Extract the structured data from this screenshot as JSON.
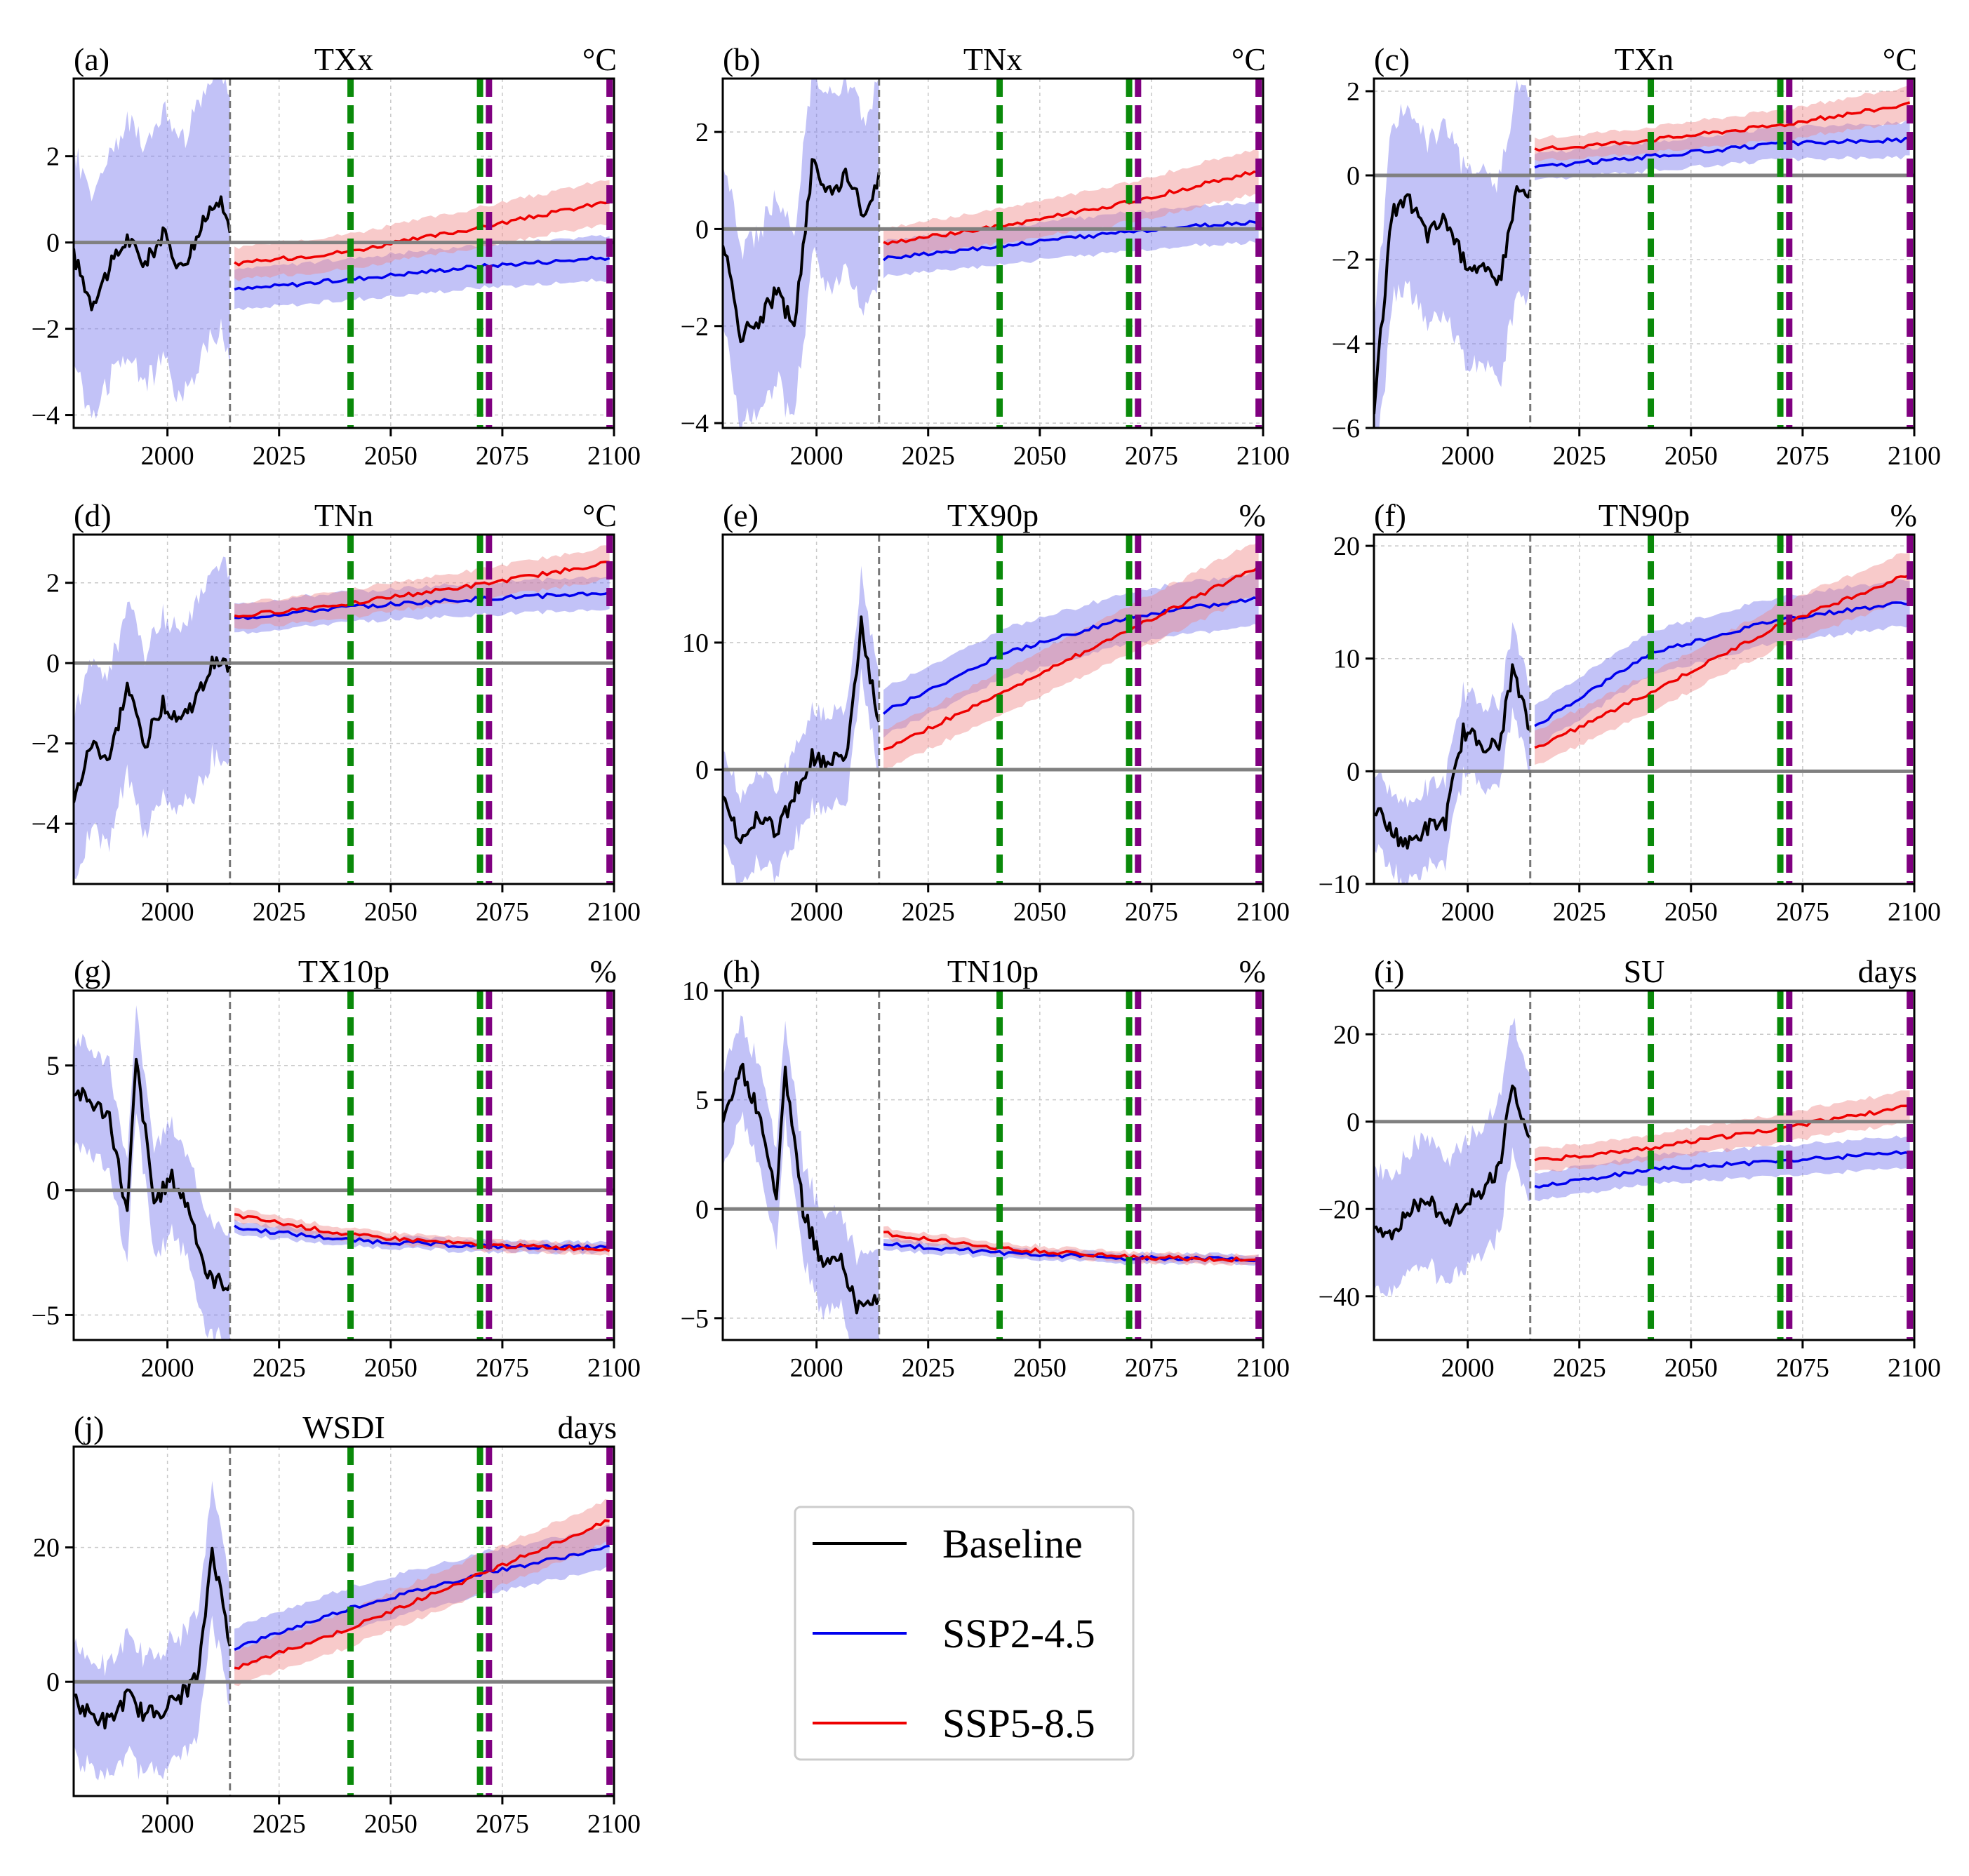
{
  "figure": {
    "x_ticks": [
      2000,
      2025,
      2050,
      2075,
      2100
    ],
    "xlim": [
      1979,
      2100
    ],
    "baseline_end_year": 2014,
    "green_markers": [
      2041,
      2070
    ],
    "purple_markers": [
      2072,
      2099
    ],
    "colors": {
      "baseline": "#000000",
      "ssp245": "#0000ee",
      "ssp585": "#ee0000",
      "band_ssp245": "#7777ee",
      "band_ssp585": "#f08a8a",
      "zero_line": "#808080",
      "green_marker": "#0a8a0a",
      "purple_marker": "#800080",
      "grid": "#c8c8c8"
    }
  },
  "legend": {
    "entries": [
      {
        "label": "Baseline",
        "color": "#000000"
      },
      {
        "label": "SSP2-4.5",
        "color": "#0000ee"
      },
      {
        "label": "SSP5-8.5",
        "color": "#ee0000"
      }
    ]
  },
  "chart_data": [
    {
      "id": "a",
      "type": "line",
      "panel": "(a)",
      "title": "TXx",
      "unit": "°C",
      "ylim": [
        -4.3,
        3.8
      ],
      "yticks": [
        -4,
        -2,
        0,
        2
      ],
      "series": [
        {
          "name": "Baseline",
          "x": [
            1979,
            1983,
            1987,
            1991,
            1995,
            1999,
            2003,
            2007,
            2011,
            2014
          ],
          "values": [
            -0.3,
            -1.4,
            -0.6,
            0.1,
            -0.5,
            0.2,
            -0.6,
            0.2,
            1.1,
            0.4
          ],
          "band": [
            2.2,
            2.8
          ]
        },
        {
          "name": "SSP2-4.5",
          "x": [
            2015,
            2041,
            2070,
            2099
          ],
          "values": [
            -1.1,
            -0.85,
            -0.55,
            -0.35
          ],
          "band": [
            0.45,
            0.5
          ]
        },
        {
          "name": "SSP5-8.5",
          "x": [
            2015,
            2041,
            2070,
            2099
          ],
          "values": [
            -0.5,
            -0.2,
            0.35,
            0.95
          ],
          "band": [
            0.35,
            0.5
          ]
        }
      ]
    },
    {
      "id": "b",
      "type": "line",
      "panel": "(b)",
      "title": "TNx",
      "unit": "°C",
      "ylim": [
        -4.1,
        3.1
      ],
      "yticks": [
        -4,
        -2,
        0,
        2
      ],
      "series": [
        {
          "name": "Baseline",
          "x": [
            1979,
            1983,
            1987,
            1991,
            1995,
            1999,
            2003,
            2007,
            2011,
            2014
          ],
          "values": [
            -0.2,
            -2.2,
            -1.9,
            -1.3,
            -2.0,
            1.3,
            0.8,
            1.1,
            0.2,
            1.0
          ],
          "band": [
            1.6,
            1.8
          ]
        },
        {
          "name": "SSP2-4.5",
          "x": [
            2015,
            2041,
            2070,
            2099
          ],
          "values": [
            -0.6,
            -0.35,
            -0.05,
            0.15
          ],
          "band": [
            0.35,
            0.4
          ]
        },
        {
          "name": "SSP5-8.5",
          "x": [
            2015,
            2041,
            2070,
            2099
          ],
          "values": [
            -0.3,
            0.05,
            0.55,
            1.2
          ],
          "band": [
            0.3,
            0.45
          ]
        }
      ]
    },
    {
      "id": "c",
      "type": "line",
      "panel": "(c)",
      "title": "TXn",
      "unit": "°C",
      "ylim": [
        -6.0,
        2.3
      ],
      "yticks": [
        -6,
        -4,
        -2,
        0,
        2
      ],
      "series": [
        {
          "name": "Baseline",
          "x": [
            1979,
            1983,
            1987,
            1991,
            1995,
            1999,
            2003,
            2007,
            2011,
            2014
          ],
          "values": [
            -5.6,
            -0.9,
            -0.6,
            -1.4,
            -1.0,
            -2.0,
            -2.2,
            -2.6,
            -0.3,
            -0.5
          ],
          "band": [
            1.8,
            2.2
          ]
        },
        {
          "name": "SSP2-4.5",
          "x": [
            2015,
            2041,
            2070,
            2099
          ],
          "values": [
            0.2,
            0.45,
            0.75,
            0.85
          ],
          "band": [
            0.3,
            0.4
          ]
        },
        {
          "name": "SSP5-8.5",
          "x": [
            2015,
            2041,
            2070,
            2099
          ],
          "values": [
            0.6,
            0.85,
            1.2,
            1.7
          ],
          "band": [
            0.25,
            0.4
          ]
        }
      ]
    },
    {
      "id": "d",
      "type": "line",
      "panel": "(d)",
      "title": "TNn",
      "unit": "°C",
      "ylim": [
        -5.5,
        3.2
      ],
      "yticks": [
        -4,
        -2,
        0,
        2
      ],
      "series": [
        {
          "name": "Baseline",
          "x": [
            1979,
            1983,
            1987,
            1991,
            1995,
            1999,
            2003,
            2007,
            2011,
            2014
          ],
          "values": [
            -3.5,
            -2.0,
            -2.4,
            -0.6,
            -2.0,
            -1.0,
            -1.4,
            -0.8,
            0.2,
            -0.2
          ],
          "band": [
            1.8,
            2.2
          ]
        },
        {
          "name": "SSP2-4.5",
          "x": [
            2015,
            2041,
            2070,
            2099
          ],
          "values": [
            1.1,
            1.4,
            1.6,
            1.75
          ],
          "band": [
            0.35,
            0.4
          ]
        },
        {
          "name": "SSP5-8.5",
          "x": [
            2015,
            2041,
            2070,
            2099
          ],
          "values": [
            1.15,
            1.5,
            1.95,
            2.5
          ],
          "band": [
            0.3,
            0.4
          ]
        }
      ]
    },
    {
      "id": "e",
      "type": "line",
      "panel": "(e)",
      "title": "TX90p",
      "unit": "%",
      "ylim": [
        -9.0,
        18.5
      ],
      "yticks": [
        0,
        10
      ],
      "series": [
        {
          "name": "Baseline",
          "x": [
            1979,
            1983,
            1987,
            1991,
            1995,
            1999,
            2003,
            2007,
            2010,
            2014
          ],
          "values": [
            -2.5,
            -5.5,
            -3.5,
            -5.0,
            -2.0,
            1.0,
            0.5,
            1.5,
            11.5,
            3.5
          ],
          "band": [
            3.0,
            3.5
          ]
        },
        {
          "name": "SSP2-4.5",
          "x": [
            2015,
            2041,
            2070,
            2099
          ],
          "values": [
            4.5,
            9.0,
            12.0,
            13.5
          ],
          "band": [
            1.8,
            2.0
          ]
        },
        {
          "name": "SSP5-8.5",
          "x": [
            2015,
            2041,
            2070,
            2099
          ],
          "values": [
            1.5,
            6.0,
            11.0,
            16.0
          ],
          "band": [
            1.5,
            2.0
          ]
        }
      ]
    },
    {
      "id": "f",
      "type": "line",
      "panel": "(f)",
      "title": "TN90p",
      "unit": "%",
      "ylim": [
        -10,
        21
      ],
      "yticks": [
        -10,
        0,
        10,
        20
      ],
      "series": [
        {
          "name": "Baseline",
          "x": [
            1979,
            1983,
            1987,
            1991,
            1995,
            1999,
            2003,
            2007,
            2010,
            2014
          ],
          "values": [
            -3.0,
            -5.5,
            -6.5,
            -5.0,
            -4.5,
            3.5,
            2.5,
            2.0,
            9.0,
            3.5
          ],
          "band": [
            3.0,
            3.5
          ]
        },
        {
          "name": "SSP2-4.5",
          "x": [
            2015,
            2041,
            2070,
            2099
          ],
          "values": [
            4.0,
            10.5,
            13.5,
            15.0
          ],
          "band": [
            1.8,
            2.0
          ]
        },
        {
          "name": "SSP5-8.5",
          "x": [
            2015,
            2041,
            2070,
            2099
          ],
          "values": [
            2.0,
            7.0,
            13.0,
            17.5
          ],
          "band": [
            1.5,
            2.0
          ]
        }
      ]
    },
    {
      "id": "g",
      "type": "line",
      "panel": "(g)",
      "title": "TX10p",
      "unit": "%",
      "ylim": [
        -6.0,
        8.0
      ],
      "yticks": [
        -5,
        0,
        5
      ],
      "series": [
        {
          "name": "Baseline",
          "x": [
            1979,
            1983,
            1987,
            1991,
            1993,
            1997,
            2001,
            2005,
            2009,
            2014
          ],
          "values": [
            4.0,
            3.5,
            3.0,
            -1.0,
            5.2,
            -0.5,
            0.5,
            -0.8,
            -3.5,
            -3.8
          ],
          "band": [
            1.8,
            2.0
          ]
        },
        {
          "name": "SSP2-4.5",
          "x": [
            2015,
            2041,
            2070,
            2099
          ],
          "values": [
            -1.5,
            -2.0,
            -2.25,
            -2.3
          ],
          "band": [
            0.25,
            0.2
          ]
        },
        {
          "name": "SSP5-8.5",
          "x": [
            2015,
            2041,
            2070,
            2099
          ],
          "values": [
            -1.0,
            -1.8,
            -2.2,
            -2.35
          ],
          "band": [
            0.25,
            0.2
          ]
        }
      ]
    },
    {
      "id": "h",
      "type": "line",
      "panel": "(h)",
      "title": "TN10p",
      "unit": "%",
      "ylim": [
        -6.0,
        10.0
      ],
      "yticks": [
        -5,
        0,
        5,
        10
      ],
      "series": [
        {
          "name": "Baseline",
          "x": [
            1979,
            1983,
            1987,
            1991,
            1993,
            1997,
            2001,
            2005,
            2009,
            2014
          ],
          "values": [
            4.0,
            6.5,
            4.5,
            0.5,
            6.2,
            0.0,
            -2.5,
            -2.0,
            -4.5,
            -4.0
          ],
          "band": [
            2.0,
            2.0
          ]
        },
        {
          "name": "SSP2-4.5",
          "x": [
            2015,
            2041,
            2070,
            2099
          ],
          "values": [
            -1.6,
            -2.0,
            -2.25,
            -2.3
          ],
          "band": [
            0.25,
            0.2
          ]
        },
        {
          "name": "SSP5-8.5",
          "x": [
            2015,
            2041,
            2070,
            2099
          ],
          "values": [
            -1.1,
            -1.8,
            -2.2,
            -2.35
          ],
          "band": [
            0.25,
            0.2
          ]
        }
      ]
    },
    {
      "id": "i",
      "type": "line",
      "panel": "(i)",
      "title": "SU",
      "unit": "days",
      "ylim": [
        -50,
        30
      ],
      "yticks": [
        -40,
        -20,
        0,
        20
      ],
      "series": [
        {
          "name": "Baseline",
          "x": [
            1979,
            1983,
            1987,
            1991,
            1995,
            1999,
            2003,
            2007,
            2010,
            2014
          ],
          "values": [
            -25.0,
            -27.0,
            -20.0,
            -17.0,
            -24.0,
            -18.0,
            -16.0,
            -11.0,
            8.0,
            -3.0
          ],
          "band": [
            12.0,
            14.0
          ]
        },
        {
          "name": "SSP2-4.5",
          "x": [
            2015,
            2041,
            2070,
            2099
          ],
          "values": [
            -15.0,
            -11.0,
            -9.0,
            -7.0
          ],
          "band": [
            3.0,
            3.5
          ]
        },
        {
          "name": "SSP5-8.5",
          "x": [
            2015,
            2041,
            2070,
            2099
          ],
          "values": [
            -9.0,
            -6.0,
            -1.5,
            3.5
          ],
          "band": [
            2.5,
            3.5
          ]
        }
      ]
    },
    {
      "id": "j",
      "type": "line",
      "panel": "(j)",
      "title": "WSDI",
      "unit": "days",
      "ylim": [
        -17,
        35
      ],
      "yticks": [
        0,
        20
      ],
      "series": [
        {
          "name": "Baseline",
          "x": [
            1979,
            1983,
            1987,
            1991,
            1995,
            1999,
            2003,
            2007,
            2010,
            2014
          ],
          "values": [
            -3.0,
            -5.0,
            -6.0,
            -2.0,
            -5.0,
            -4.0,
            -2.0,
            1.0,
            20.0,
            6.0
          ],
          "band": [
            7.0,
            9.0
          ]
        },
        {
          "name": "SSP2-4.5",
          "x": [
            2015,
            2041,
            2070,
            2099
          ],
          "values": [
            5.0,
            11.0,
            16.0,
            20.0
          ],
          "band": [
            3.0,
            3.0
          ]
        },
        {
          "name": "SSP5-8.5",
          "x": [
            2015,
            2041,
            2070,
            2099
          ],
          "values": [
            2.0,
            8.0,
            16.0,
            24.0
          ],
          "band": [
            2.5,
            3.0
          ]
        }
      ]
    }
  ]
}
